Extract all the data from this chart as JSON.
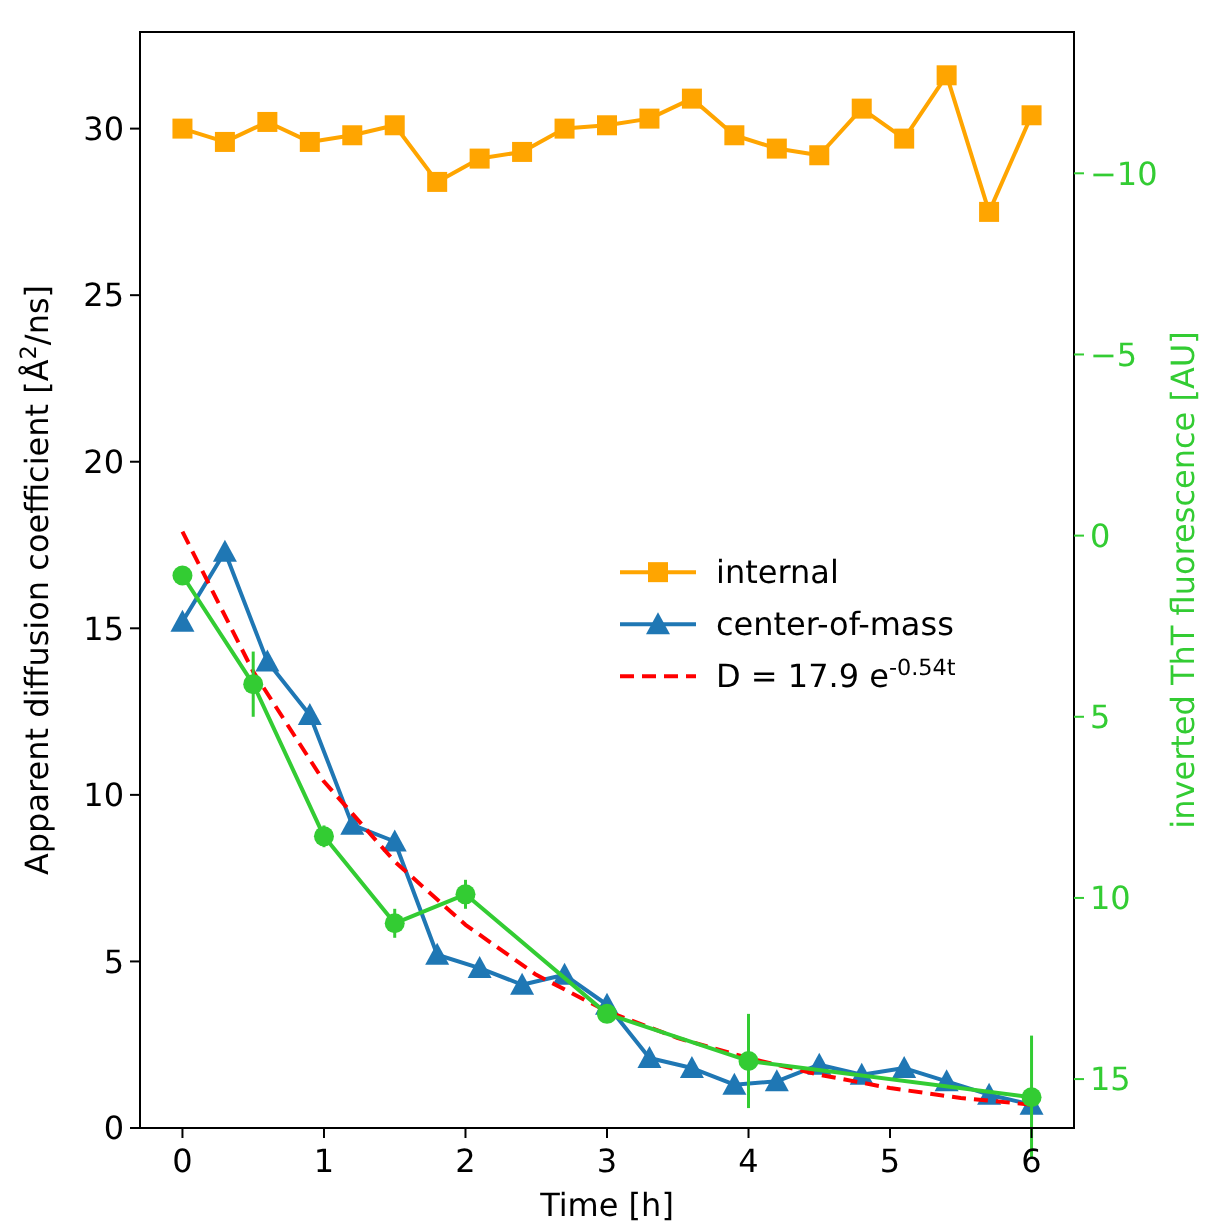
{
  "chart_data": {
    "type": "line",
    "xlabel": "Time [h]",
    "ylabel": "Apparent diffusion coefficient [Å$^{2}$/ns]",
    "y2label": "inverted ThT fluorescence [AU]",
    "xlim": [
      -0.3,
      6.3
    ],
    "xticks": [
      0,
      1,
      2,
      3,
      4,
      5,
      6
    ],
    "ylim": [
      0,
      32.9
    ],
    "yticks": [
      0,
      5,
      10,
      15,
      20,
      25,
      30
    ],
    "y2lim": [
      16.35,
      -13.9
    ],
    "y2ticks": [
      {
        "value": -10,
        "label": "−10"
      },
      {
        "value": -5,
        "label": "−5"
      },
      0,
      5,
      10,
      15
    ],
    "legend": "right",
    "grid": false,
    "series": [
      {
        "name": "internal",
        "color": "#ffa500",
        "marker": "square",
        "x": [
          0,
          0.3,
          0.6,
          0.9,
          1.2,
          1.5,
          1.8,
          2.1,
          2.4,
          2.7,
          3.0,
          3.3,
          3.6,
          3.9,
          4.2,
          4.5,
          4.8,
          5.1,
          5.4,
          5.7,
          6.0
        ],
        "values": [
          30.0,
          29.6,
          30.2,
          29.6,
          29.8,
          30.1,
          28.4,
          29.1,
          29.3,
          30.0,
          30.1,
          30.3,
          30.9,
          29.8,
          29.4,
          29.2,
          30.6,
          29.7,
          31.6,
          27.5,
          30.4
        ]
      },
      {
        "name": "center-of-mass",
        "color": "#1f77b4",
        "marker": "triangle",
        "x": [
          0,
          0.3,
          0.6,
          0.9,
          1.2,
          1.5,
          1.8,
          2.1,
          2.4,
          2.7,
          3.0,
          3.3,
          3.6,
          3.9,
          4.2,
          4.5,
          4.8,
          5.1,
          5.4,
          5.7,
          6.0
        ],
        "values": [
          15.2,
          17.3,
          14.0,
          12.4,
          9.1,
          8.6,
          5.2,
          4.8,
          4.3,
          4.6,
          3.7,
          2.1,
          1.8,
          1.3,
          1.4,
          1.9,
          1.6,
          1.8,
          1.4,
          1.0,
          0.7
        ]
      },
      {
        "name": "D = 17.9 e$^{-0.54t}$",
        "color": "#ff0000",
        "marker": "none",
        "line_style": "dashed",
        "x": [
          0,
          0.5,
          1,
          1.5,
          2,
          2.5,
          3,
          3.5,
          4,
          4.5,
          5,
          5.5,
          6
        ],
        "values": [
          17.9,
          13.7,
          10.4,
          8.0,
          6.1,
          4.6,
          3.5,
          2.7,
          2.1,
          1.6,
          1.2,
          0.9,
          0.7
        ]
      },
      {
        "color": "#33cc33",
        "marker": "circle",
        "axis": "y2",
        "x": [
          0,
          0.5,
          1,
          1.5,
          2,
          3,
          4,
          6
        ],
        "values": [
          1.1,
          4.1,
          8.3,
          10.7,
          9.9,
          13.2,
          14.5,
          15.5
        ],
        "errors": [
          null,
          0.9,
          0.3,
          0.4,
          0.4,
          null,
          1.3,
          1.7
        ]
      }
    ]
  }
}
